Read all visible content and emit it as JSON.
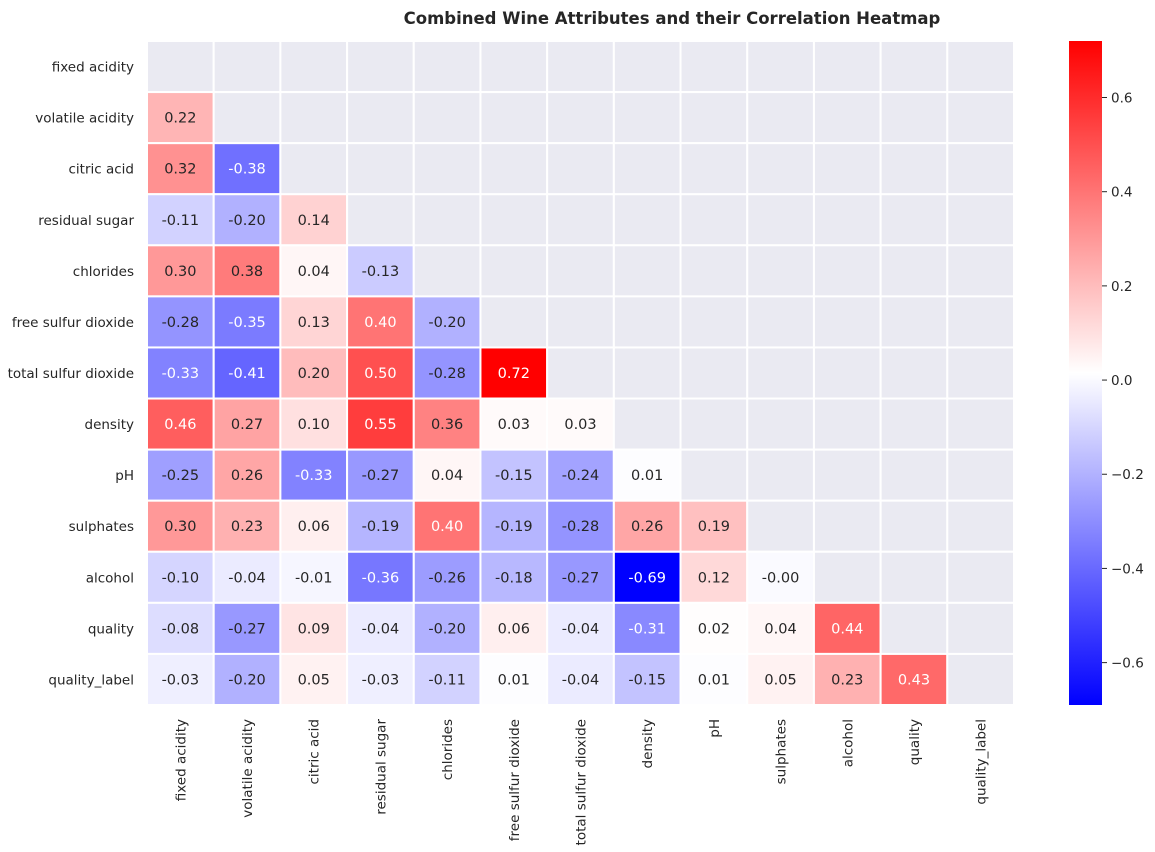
{
  "chart_data": {
    "type": "heatmap",
    "title": "Combined Wine Attributes and their Correlation Heatmap",
    "labels": [
      "fixed acidity",
      "volatile acidity",
      "citric acid",
      "residual sugar",
      "chlorides",
      "free sulfur dioxide",
      "total sulfur dioxide",
      "density",
      "pH",
      "sulphates",
      "alcohol",
      "quality",
      "quality_label"
    ],
    "mask": "upper-triangle-including-diagonal",
    "values": [
      [
        null,
        null,
        null,
        null,
        null,
        null,
        null,
        null,
        null,
        null,
        null,
        null,
        null
      ],
      [
        0.22,
        null,
        null,
        null,
        null,
        null,
        null,
        null,
        null,
        null,
        null,
        null,
        null
      ],
      [
        0.32,
        -0.38,
        null,
        null,
        null,
        null,
        null,
        null,
        null,
        null,
        null,
        null,
        null
      ],
      [
        -0.11,
        -0.2,
        0.14,
        null,
        null,
        null,
        null,
        null,
        null,
        null,
        null,
        null,
        null
      ],
      [
        0.3,
        0.38,
        0.04,
        -0.13,
        null,
        null,
        null,
        null,
        null,
        null,
        null,
        null,
        null
      ],
      [
        -0.28,
        -0.35,
        0.13,
        0.4,
        -0.2,
        null,
        null,
        null,
        null,
        null,
        null,
        null,
        null
      ],
      [
        -0.33,
        -0.41,
        0.2,
        0.5,
        -0.28,
        0.72,
        null,
        null,
        null,
        null,
        null,
        null,
        null
      ],
      [
        0.46,
        0.27,
        0.1,
        0.55,
        0.36,
        0.03,
        0.03,
        null,
        null,
        null,
        null,
        null,
        null
      ],
      [
        -0.25,
        0.26,
        -0.33,
        -0.27,
        0.04,
        -0.15,
        -0.24,
        0.01,
        null,
        null,
        null,
        null,
        null
      ],
      [
        0.3,
        0.23,
        0.06,
        -0.19,
        0.4,
        -0.19,
        -0.28,
        0.26,
        0.19,
        null,
        null,
        null,
        null
      ],
      [
        -0.1,
        -0.04,
        -0.01,
        -0.36,
        -0.26,
        -0.18,
        -0.27,
        -0.69,
        0.12,
        -0.0,
        null,
        null,
        null
      ],
      [
        -0.08,
        -0.27,
        0.09,
        -0.04,
        -0.2,
        0.06,
        -0.04,
        -0.31,
        0.02,
        0.04,
        0.44,
        null,
        null
      ],
      [
        -0.03,
        -0.2,
        0.05,
        -0.03,
        -0.11,
        0.01,
        -0.04,
        -0.15,
        0.01,
        0.05,
        0.23,
        0.43,
        null
      ]
    ],
    "colormap": "bwr",
    "vmin": -0.69,
    "vmax": 0.72,
    "colorbar_ticks": [
      "-0.6",
      "-0.4",
      "-0.2",
      "0.0",
      "0.2",
      "0.4",
      "0.6"
    ],
    "background_color": "#eaeaf2",
    "grid_line_color": "#ffffff"
  }
}
